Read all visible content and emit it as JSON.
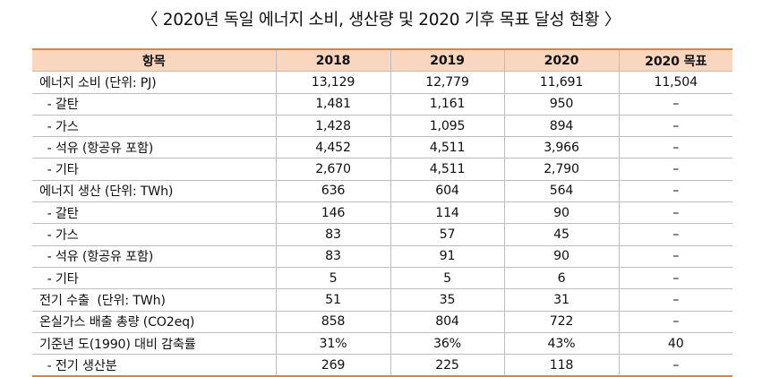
{
  "title": "〈 2020년 독일 에너지 소비, 생산량 및 2020 기후 목표 달성 현황 〉",
  "table": {
    "headers": [
      "항목",
      "2018",
      "2019",
      "2020",
      "2020 목표"
    ],
    "rows": [
      [
        "에너지 소비 (단위: PJ)",
        "13,129",
        "12,779",
        "11,691",
        "11,504"
      ],
      [
        "  - 갈탄",
        "1,481",
        "1,161",
        "950",
        "–"
      ],
      [
        "  - 가스",
        "1,428",
        "1,095",
        "894",
        "–"
      ],
      [
        "  - 석유 (항공유 포함)",
        "4,452",
        "4,511",
        "3,966",
        "–"
      ],
      [
        "  - 기타",
        "2,670",
        "4,511",
        "2,790",
        "–"
      ],
      [
        "에너지 생산 (단위: TWh)",
        "636",
        "604",
        "564",
        "–"
      ],
      [
        "  - 갈탄",
        "146",
        "114",
        "90",
        "–"
      ],
      [
        "  - 가스",
        "83",
        "57",
        "45",
        "–"
      ],
      [
        "  - 석유 (항공유 포함)",
        "83",
        "91",
        "90",
        "–"
      ],
      [
        "  - 기타",
        "5",
        "5",
        "6",
        "–"
      ],
      [
        "전기 수출  (단위: TWh)",
        "51",
        "35",
        "31",
        "–"
      ],
      [
        "온실가스 배출 총량 (CO2eq)",
        "858",
        "804",
        "722",
        "–"
      ],
      [
        "기준년 도(1990) 대비 감축률",
        "31%",
        "36%",
        "43%",
        "40"
      ],
      [
        "  - 전기 생산분",
        "269",
        "225",
        "118",
        "–"
      ]
    ]
  }
}
